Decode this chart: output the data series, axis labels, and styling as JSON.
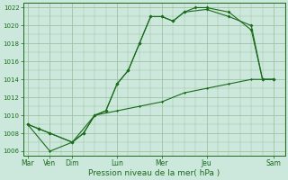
{
  "xlabel": "Pression niveau de la mer( hPa )",
  "bg_color": "#cce8dd",
  "grid_color": "#99bb99",
  "line_color": "#1a6b1a",
  "ylim": [
    1005.5,
    1022.5
  ],
  "yticks": [
    1006,
    1008,
    1010,
    1012,
    1014,
    1016,
    1018,
    1020,
    1022
  ],
  "day_tick_labels": [
    "Mar",
    "Ven",
    "Dim",
    "Lun",
    "Mer",
    "Jeu",
    "Sam"
  ],
  "day_tick_pos": [
    0,
    1,
    2,
    4,
    6,
    8,
    11
  ],
  "xlim": [
    -0.2,
    11.5
  ],
  "line1_x": [
    0,
    0.5,
    1,
    2,
    2.5,
    3,
    3.5,
    4,
    4.5,
    5,
    5.5,
    6,
    6.5,
    7,
    7.5,
    8,
    9,
    10,
    10.5,
    11
  ],
  "line1_y": [
    1009,
    1008.5,
    1008,
    1007,
    1008,
    1010,
    1010.5,
    1013.5,
    1015,
    1018,
    1021,
    1021,
    1020.5,
    1021.5,
    1022,
    1022,
    1021.5,
    1019.5,
    1014,
    1014
  ],
  "line2_x": [
    0,
    0.5,
    1,
    2,
    2.5,
    3,
    3.5,
    4,
    4.5,
    5,
    5.5,
    6,
    6.5,
    7,
    8,
    9,
    10,
    10.5,
    11
  ],
  "line2_y": [
    1009,
    1008.5,
    1008,
    1007,
    1008,
    1010,
    1010.5,
    1013.5,
    1015,
    1018,
    1021,
    1021,
    1020.5,
    1021.5,
    1021.8,
    1021,
    1020,
    1014,
    1014
  ],
  "line3_x": [
    0,
    1,
    2,
    3,
    4,
    5,
    6,
    7,
    8,
    9,
    10,
    11
  ],
  "line3_y": [
    1009,
    1006,
    1007,
    1010,
    1010.5,
    1011,
    1011.5,
    1012.5,
    1013,
    1013.5,
    1014,
    1014
  ]
}
